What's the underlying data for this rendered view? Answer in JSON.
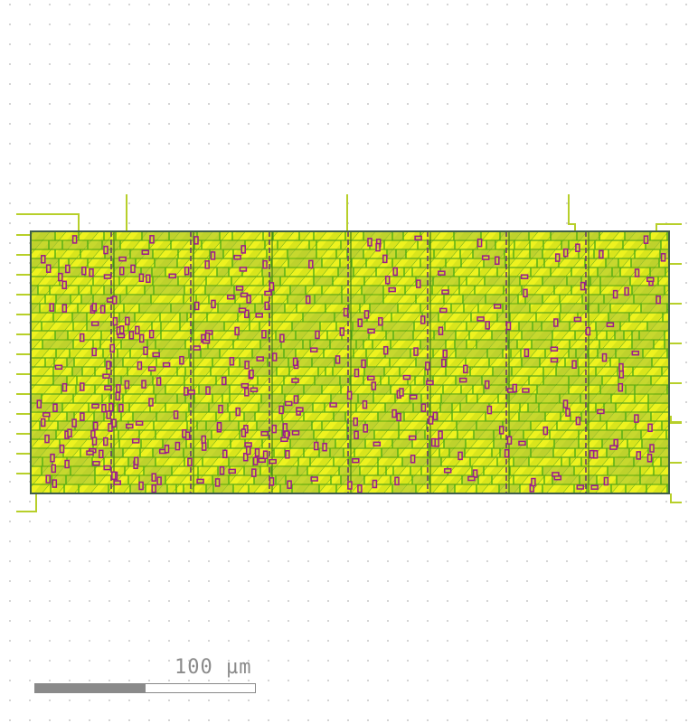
{
  "scale_bar": {
    "label": "100 µm",
    "filled_fraction": 0.5
  },
  "colors": {
    "background": "#ffffff",
    "grid_dot": "#b4b4b4",
    "metal_green": "#4fae14",
    "fill_yellow": "#e4ec1a",
    "fill_olive": "#a8c23a",
    "via_magenta": "#9c1a8c",
    "boundary_dark": "#3f5f4a",
    "pin_line": "#b7cf2a",
    "scale_gray": "#8a8a8a"
  },
  "layout_elements": {
    "icons": [
      "chip-core-layout",
      "io-pin",
      "via-cell",
      "grid-dot"
    ]
  }
}
